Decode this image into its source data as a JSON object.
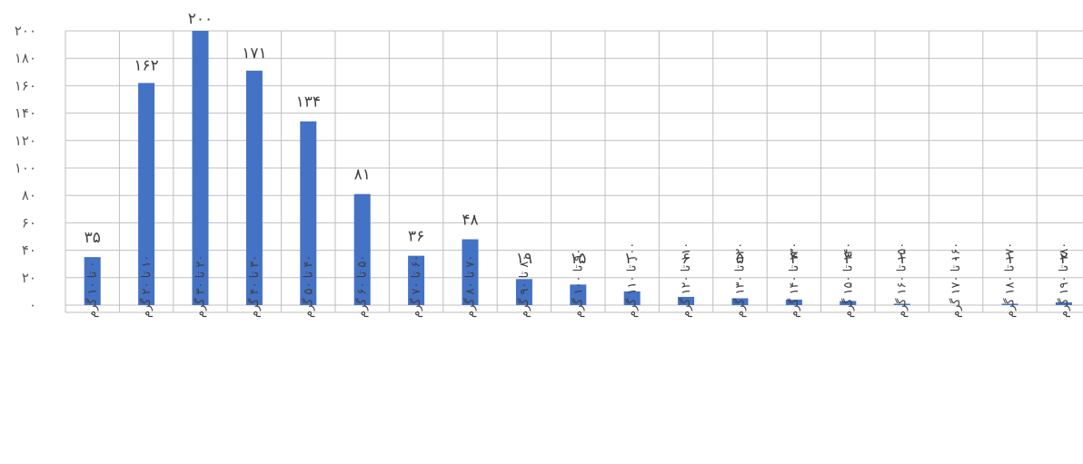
{
  "chart_data": {
    "type": "bar",
    "title": "",
    "xlabel": "",
    "ylabel": "",
    "ylim": [
      0,
      200
    ],
    "ytick_step": 20,
    "yticks": [
      "۰",
      "۲۰",
      "۴۰",
      "۶۰",
      "۸۰",
      "۱۰۰",
      "۱۲۰",
      "۱۴۰",
      "۱۶۰",
      "۱۸۰",
      "۲۰۰"
    ],
    "grid": true,
    "bar_color": "#4472C4",
    "categories": [
      "۰ تا ۱۰ گرم",
      "۱۰ تا ۲۰ گرم",
      "۲۰ تا ۳۰ گرم",
      "۳۰ تا ۴۰ گرم",
      "۴۰ تا ۵۰ گرم",
      "۵۰ تا ۶۰ گرم",
      "۶۰ تا ۷۰ گرم",
      "۷۰ تا ۸۰ گرم",
      "۸۰ تا ۹۰ گرم",
      "۹۰ تا ۱۰۰ گرم",
      "۱۰۰ تا ۱۱۰ گرم",
      "۱۱۰ تا ۱۲۰ گرم",
      "۱۲۰ تا ۱۳۰ گرم",
      "۱۳۰ تا ۱۴۰ گرم",
      "۱۴۰ تا ۱۵۰ گرم",
      "۱۵۰ تا ۱۶۰ گرم",
      "۱۶۰ تا ۱۷۰ گرم",
      "۱۷۰ تا ۱۸۰ گرم",
      "۱۸۰ تا ۱۹۰ گرم"
    ],
    "values": [
      35,
      162,
      200,
      171,
      134,
      81,
      36,
      48,
      19,
      15,
      10,
      6,
      5,
      4,
      3,
      1,
      0,
      1,
      2
    ],
    "value_labels": [
      "۳۵",
      "۱۶۲",
      "۲۰۰",
      "۱۷۱",
      "۱۳۴",
      "۸۱",
      "۳۶",
      "۴۸",
      "۱۹",
      "۱۵",
      "۱۰",
      "۶",
      "۵",
      "۴",
      "۳",
      "۱",
      "۰",
      "۱",
      "۲"
    ]
  }
}
